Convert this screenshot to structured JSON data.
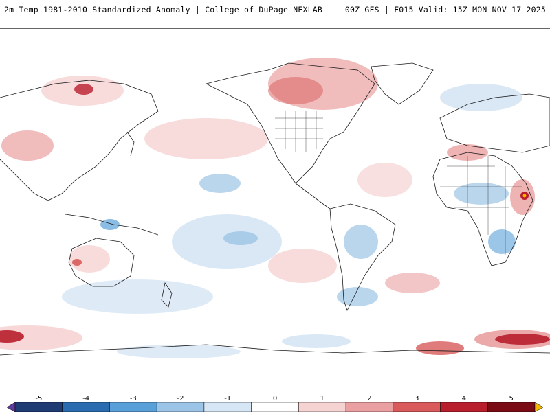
{
  "header": {
    "title_left": "2m Temp 1981-2010 Standardized Anomaly | College of DuPage NEXLAB",
    "title_right": "00Z GFS | F015 Valid: 15Z MON NOV 17 2025"
  },
  "legend": {
    "ticks": [
      "-5",
      "-4",
      "-3",
      "-2",
      "-1",
      "0",
      "1",
      "2",
      "3",
      "4",
      "5"
    ],
    "min": -5.5,
    "max": 5.5,
    "colors": [
      "#5d3a9b",
      "#1f3b73",
      "#2b6cb0",
      "#5aa0d8",
      "#9cc4e6",
      "#d6e6f5",
      "#ffffff",
      "#f6d3d3",
      "#eaa0a0",
      "#d85a5a",
      "#b81e2c",
      "#7a0a14",
      "#f0b800"
    ]
  },
  "colors": {
    "land_outline": "#1a1a1a",
    "cold_light": "#d6e6f5",
    "cold_mid": "#9cc4e6",
    "cold_strong": "#2b6cb0",
    "warm_light": "#f6d3d3",
    "warm_mid": "#eaa0a0",
    "warm_strong": "#b81e2c"
  }
}
